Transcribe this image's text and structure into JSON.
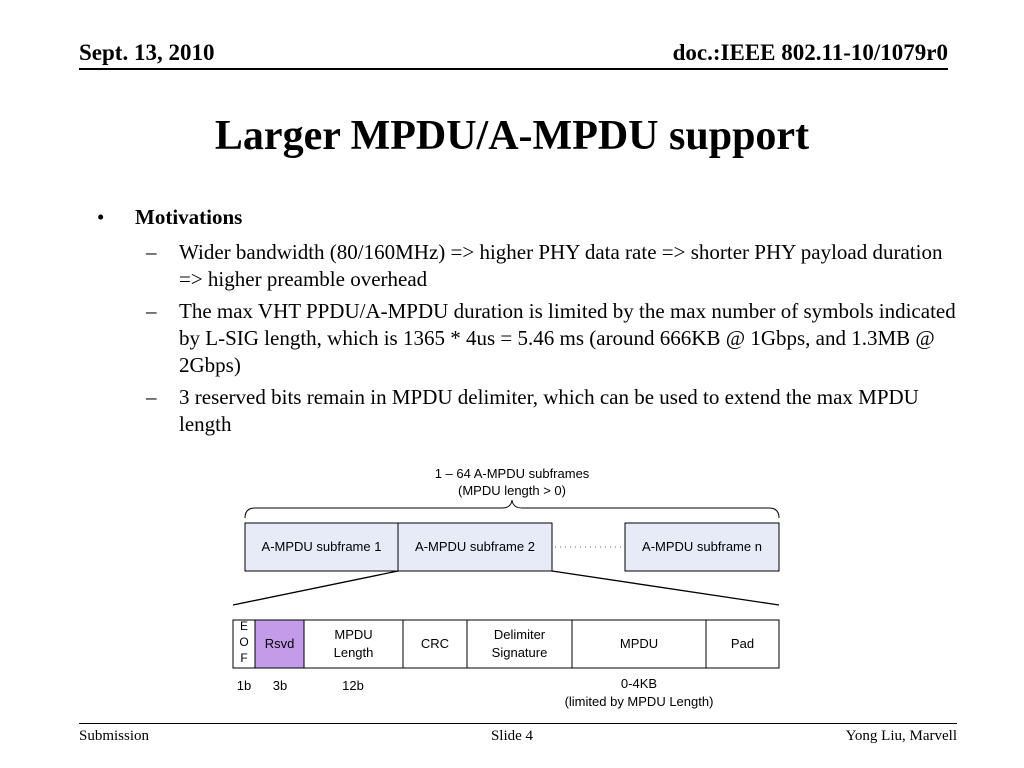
{
  "header": {
    "date": "Sept. 13, 2010",
    "doc": "doc.:IEEE 802.11-10/1079r0"
  },
  "title": "Larger MPDU/A-MPDU support",
  "bullets": {
    "main": "Motivations",
    "subs": [
      "Wider bandwidth (80/160MHz) => higher PHY data rate => shorter PHY payload duration => higher preamble overhead",
      "The max VHT PPDU/A-MPDU duration is limited by the max number of symbols indicated by L-SIG length, which is 1365 * 4us = 5.46 ms (around 666KB @ 1Gbps, and 1.3MB @ 2Gbps)",
      "3 reserved bits remain in MPDU delimiter, which can be used to extend the max MPDU length"
    ]
  },
  "diagram": {
    "brace_label_line1": "1 – 64 A-MPDU subframes",
    "brace_label_line2": "(MPDU length > 0)",
    "subframes": [
      "A-MPDU subframe 1",
      "A-MPDU subframe 2",
      "A-MPDU subframe n"
    ],
    "fields": {
      "eof": [
        "E",
        "O",
        "F"
      ],
      "rsvd": "Rsvd",
      "mpdu_length": [
        "MPDU",
        "Length"
      ],
      "crc": "CRC",
      "delimiter_signature": [
        "Delimiter",
        "Signature"
      ],
      "mpdu": "MPDU",
      "pad": "Pad"
    },
    "sizes": {
      "eof": "1b",
      "rsvd": "3b",
      "mpdu_length": "12b",
      "mpdu_line1": "0-4KB",
      "mpdu_line2": "(limited by MPDU Length)"
    },
    "colors": {
      "subframe_fill": "#e6ebf7",
      "rsvd_fill": "#c39be8"
    }
  },
  "footer": {
    "left": "Submission",
    "center": "Slide 4",
    "right": "Yong Liu, Marvell"
  }
}
